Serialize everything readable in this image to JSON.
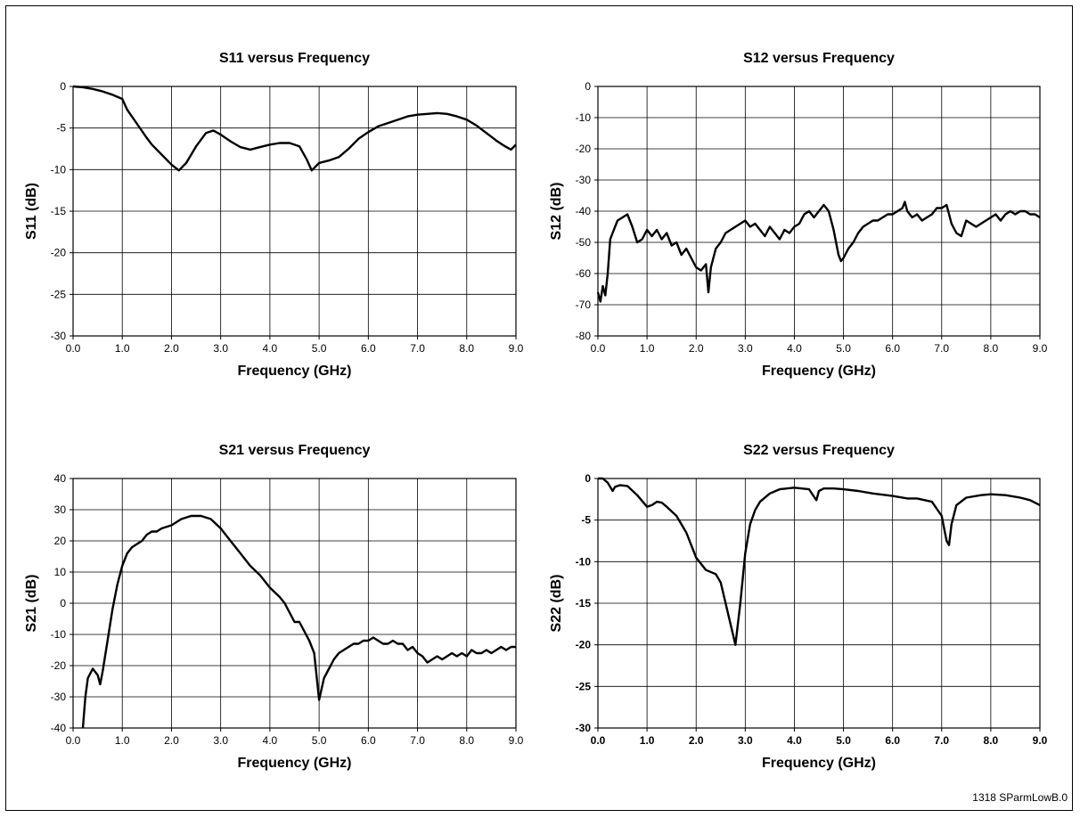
{
  "footer": "1318 SParmLowB.0",
  "chart_data": [
    {
      "type": "line",
      "title": "S11 versus Frequency",
      "xlabel": "Frequency (GHz)",
      "ylabel": "S11 (dB)",
      "xlim": [
        0,
        9
      ],
      "ylim": [
        -30,
        0
      ],
      "xticks": [
        "0.0",
        "1.0",
        "2.0",
        "3.0",
        "4.0",
        "5.0",
        "6.0",
        "7.0",
        "8.0",
        "9.0"
      ],
      "yticks": [
        "0",
        "-5",
        "-10",
        "-15",
        "-20",
        "-25",
        "-30"
      ],
      "grid": true,
      "x": [
        0,
        0.2,
        0.4,
        0.6,
        0.8,
        1.0,
        1.1,
        1.3,
        1.5,
        1.6,
        1.8,
        2.0,
        2.15,
        2.3,
        2.5,
        2.7,
        2.85,
        3.0,
        3.2,
        3.4,
        3.6,
        3.8,
        4.0,
        4.2,
        4.4,
        4.6,
        4.75,
        4.85,
        5.0,
        5.2,
        5.4,
        5.6,
        5.8,
        6.0,
        6.2,
        6.5,
        6.8,
        7.0,
        7.2,
        7.4,
        7.6,
        7.8,
        8.0,
        8.2,
        8.4,
        8.6,
        8.75,
        8.9,
        9.0
      ],
      "y": [
        0,
        -0.1,
        -0.3,
        -0.6,
        -1.0,
        -1.5,
        -2.8,
        -4.5,
        -6.2,
        -7.0,
        -8.2,
        -9.4,
        -10.1,
        -9.2,
        -7.2,
        -5.6,
        -5.3,
        -5.8,
        -6.6,
        -7.3,
        -7.6,
        -7.3,
        -7.0,
        -6.8,
        -6.8,
        -7.2,
        -8.8,
        -10.1,
        -9.2,
        -8.9,
        -8.5,
        -7.5,
        -6.3,
        -5.5,
        -4.8,
        -4.2,
        -3.6,
        -3.4,
        -3.3,
        -3.2,
        -3.3,
        -3.6,
        -4.0,
        -4.7,
        -5.6,
        -6.5,
        -7.1,
        -7.6,
        -7.0
      ]
    },
    {
      "type": "line",
      "title": "S12 versus Frequency",
      "xlabel": "Frequency (GHz)",
      "ylabel": "S12 (dB)",
      "xlim": [
        0,
        9
      ],
      "ylim": [
        -80,
        0
      ],
      "xticks": [
        "0.0",
        "1.0",
        "2.0",
        "3.0",
        "4.0",
        "5.0",
        "6.0",
        "7.0",
        "8.0",
        "9.0"
      ],
      "yticks": [
        "0",
        "-10",
        "-20",
        "-30",
        "-40",
        "-50",
        "-60",
        "-70",
        "-80"
      ],
      "grid": true,
      "x": [
        0,
        0.05,
        0.1,
        0.15,
        0.2,
        0.25,
        0.3,
        0.4,
        0.5,
        0.6,
        0.7,
        0.8,
        0.9,
        1.0,
        1.1,
        1.2,
        1.3,
        1.4,
        1.5,
        1.6,
        1.7,
        1.8,
        1.9,
        2.0,
        2.1,
        2.2,
        2.25,
        2.3,
        2.4,
        2.5,
        2.6,
        2.7,
        2.8,
        2.9,
        3.0,
        3.1,
        3.2,
        3.3,
        3.4,
        3.5,
        3.6,
        3.7,
        3.8,
        3.9,
        4.0,
        4.1,
        4.2,
        4.3,
        4.4,
        4.5,
        4.6,
        4.7,
        4.8,
        4.9,
        4.95,
        5.0,
        5.1,
        5.2,
        5.3,
        5.4,
        5.5,
        5.6,
        5.7,
        5.8,
        5.9,
        6.0,
        6.1,
        6.2,
        6.25,
        6.3,
        6.4,
        6.5,
        6.6,
        6.7,
        6.8,
        6.9,
        7.0,
        7.1,
        7.2,
        7.3,
        7.4,
        7.5,
        7.6,
        7.7,
        7.8,
        7.9,
        8.0,
        8.1,
        8.2,
        8.3,
        8.4,
        8.5,
        8.6,
        8.7,
        8.8,
        8.9,
        9.0
      ],
      "y": [
        -66,
        -69,
        -64,
        -67,
        -60,
        -49,
        -47,
        -43,
        -42,
        -41,
        -45,
        -50,
        -49,
        -46,
        -48,
        -46,
        -49,
        -47,
        -51,
        -50,
        -54,
        -52,
        -55,
        -58,
        -59,
        -57,
        -66,
        -58,
        -52,
        -50,
        -47,
        -46,
        -45,
        -44,
        -43,
        -45,
        -44,
        -46,
        -48,
        -45,
        -47,
        -49,
        -46,
        -47,
        -45,
        -44,
        -41,
        -40,
        -42,
        -40,
        -38,
        -40,
        -46,
        -54,
        -56,
        -55,
        -52,
        -50,
        -47,
        -45,
        -44,
        -43,
        -43,
        -42,
        -41,
        -41,
        -40,
        -39,
        -37,
        -40,
        -42,
        -41,
        -43,
        -42,
        -41,
        -39,
        -39,
        -38,
        -44,
        -47,
        -48,
        -43,
        -44,
        -45,
        -44,
        -43,
        -42,
        -41,
        -43,
        -41,
        -40,
        -41,
        -40,
        -40,
        -41,
        -41,
        -42
      ]
    },
    {
      "type": "line",
      "title": "S21 versus Frequency",
      "xlabel": "Frequency (GHz)",
      "ylabel": "S21 (dB)",
      "xlim": [
        0,
        9
      ],
      "ylim": [
        -40,
        40
      ],
      "xticks": [
        "0.0",
        "1.0",
        "2.0",
        "3.0",
        "4.0",
        "5.0",
        "6.0",
        "7.0",
        "8.0",
        "9.0"
      ],
      "yticks": [
        "40",
        "30",
        "20",
        "10",
        "0",
        "-10",
        "-20",
        "-30",
        "-40"
      ],
      "grid": true,
      "x": [
        0.2,
        0.25,
        0.3,
        0.4,
        0.5,
        0.55,
        0.6,
        0.7,
        0.8,
        0.9,
        1.0,
        1.1,
        1.2,
        1.3,
        1.4,
        1.5,
        1.6,
        1.7,
        1.8,
        2.0,
        2.2,
        2.4,
        2.5,
        2.6,
        2.8,
        3.0,
        3.2,
        3.4,
        3.6,
        3.8,
        4.0,
        4.2,
        4.3,
        4.4,
        4.5,
        4.6,
        4.7,
        4.8,
        4.9,
        5.0,
        5.1,
        5.2,
        5.3,
        5.4,
        5.5,
        5.6,
        5.7,
        5.8,
        5.9,
        6.0,
        6.1,
        6.2,
        6.3,
        6.4,
        6.5,
        6.6,
        6.7,
        6.8,
        6.9,
        7.0,
        7.1,
        7.2,
        7.3,
        7.4,
        7.5,
        7.6,
        7.7,
        7.8,
        7.9,
        8.0,
        8.1,
        8.2,
        8.3,
        8.4,
        8.5,
        8.6,
        8.7,
        8.8,
        8.9,
        9.0
      ],
      "y": [
        -40,
        -30,
        -24,
        -21,
        -23,
        -26,
        -22,
        -12,
        -2,
        6,
        12,
        16,
        18,
        19,
        20,
        22,
        23,
        23,
        24,
        25,
        27,
        28,
        28,
        28,
        27,
        24,
        20,
        16,
        12,
        9,
        5,
        2,
        0,
        -3,
        -6,
        -6,
        -9,
        -12,
        -16,
        -31,
        -24,
        -21,
        -18,
        -16,
        -15,
        -14,
        -13,
        -13,
        -12,
        -12,
        -11,
        -12,
        -13,
        -13,
        -12,
        -13,
        -13,
        -15,
        -14,
        -16,
        -17,
        -19,
        -18,
        -17,
        -18,
        -17,
        -16,
        -17,
        -16,
        -17,
        -15,
        -16,
        -16,
        -15,
        -16,
        -15,
        -14,
        -15,
        -14,
        -14
      ]
    },
    {
      "type": "line",
      "title": "S22 versus Frequency",
      "xlabel": "Frequency (GHz)",
      "ylabel": "S22 (dB)",
      "xlim": [
        0,
        9
      ],
      "ylim": [
        -30,
        0
      ],
      "xticks": [
        "0.0",
        "1.0",
        "2.0",
        "3.0",
        "4.0",
        "5.0",
        "6.0",
        "7.0",
        "8.0",
        "9.0"
      ],
      "yticks": [
        "0",
        "-5",
        "-10",
        "-15",
        "-20",
        "-25",
        "-30"
      ],
      "grid": true,
      "x": [
        0,
        0.1,
        0.2,
        0.3,
        0.35,
        0.45,
        0.6,
        0.8,
        1.0,
        1.1,
        1.2,
        1.3,
        1.4,
        1.6,
        1.8,
        2.0,
        2.2,
        2.4,
        2.5,
        2.6,
        2.7,
        2.8,
        2.9,
        3.0,
        3.1,
        3.2,
        3.3,
        3.5,
        3.7,
        4.0,
        4.3,
        4.4,
        4.45,
        4.5,
        4.6,
        4.8,
        5.0,
        5.3,
        5.6,
        6.0,
        6.3,
        6.5,
        6.8,
        7.0,
        7.1,
        7.15,
        7.2,
        7.3,
        7.5,
        7.8,
        8.0,
        8.3,
        8.6,
        8.8,
        9.0
      ],
      "y": [
        0,
        0,
        -0.5,
        -1.5,
        -1.0,
        -0.8,
        -0.9,
        -2.0,
        -3.4,
        -3.2,
        -2.8,
        -2.9,
        -3.4,
        -4.5,
        -6.5,
        -9.5,
        -11.0,
        -11.5,
        -12.5,
        -15.0,
        -17.5,
        -20.0,
        -15.0,
        -9.0,
        -5.5,
        -3.8,
        -2.8,
        -1.8,
        -1.3,
        -1.1,
        -1.3,
        -2.2,
        -2.6,
        -1.5,
        -1.2,
        -1.2,
        -1.3,
        -1.5,
        -1.8,
        -2.1,
        -2.4,
        -2.4,
        -2.8,
        -4.5,
        -7.5,
        -8.0,
        -5.5,
        -3.2,
        -2.3,
        -2.0,
        -1.9,
        -2.0,
        -2.3,
        -2.6,
        -3.2
      ]
    }
  ]
}
